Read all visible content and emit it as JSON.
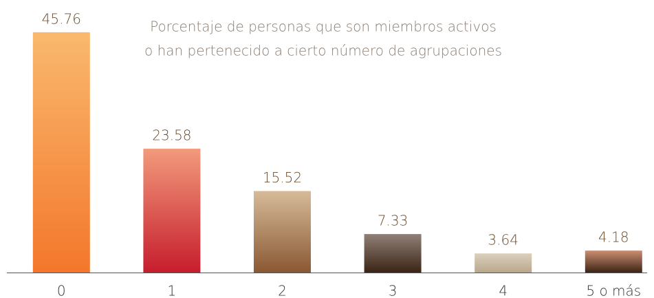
{
  "chart_data": {
    "type": "bar",
    "title": [
      "Porcentaje de personas que son miembros activos",
      "o han pertenecido a cierto número de agrupaciones"
    ],
    "categories": [
      "0",
      "1",
      "2",
      "3",
      "4",
      "5 o más"
    ],
    "values": [
      45.76,
      23.58,
      15.52,
      7.33,
      3.64,
      4.18
    ],
    "colors": [
      [
        "#f9b96e",
        "#f3772b"
      ],
      [
        "#f29a7c",
        "#c61d2d"
      ],
      [
        "#d6bb99",
        "#8a5833"
      ],
      [
        "#908078",
        "#3b2414"
      ],
      [
        "#dbd0bd",
        "#b9a78c"
      ],
      [
        "#cc8e72",
        "#3c2414"
      ]
    ],
    "ylim": [
      0,
      50
    ]
  }
}
